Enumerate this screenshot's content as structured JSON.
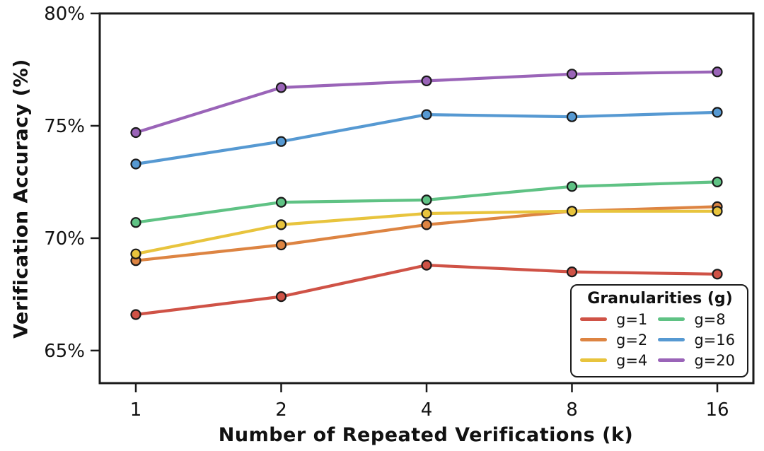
{
  "chart_data": {
    "type": "line",
    "title": "",
    "xlabel": "Number of Repeated Verifications (k)",
    "ylabel": "Verification Accuracy (%)",
    "x": [
      1,
      2,
      4,
      8,
      16
    ],
    "x_scale": "log2",
    "x_tick_labels": [
      "1",
      "2",
      "4",
      "8",
      "16"
    ],
    "y_ticks": [
      65,
      70,
      75,
      80
    ],
    "y_tick_labels": [
      "65%",
      "70%",
      "75%",
      "80%"
    ],
    "ylim": [
      63.55,
      80
    ],
    "grid": false,
    "legend_title": "Granularities (g)",
    "legend_position": "lower right",
    "axis_color": "#1a1a1a",
    "series": [
      {
        "name": "g=1",
        "color": "#cf5246",
        "values": [
          66.6,
          67.4,
          68.8,
          68.5,
          68.4
        ]
      },
      {
        "name": "g=2",
        "color": "#dd8442",
        "values": [
          69.0,
          69.7,
          70.6,
          71.2,
          71.4
        ]
      },
      {
        "name": "g=4",
        "color": "#e8c43d",
        "values": [
          69.3,
          70.6,
          71.1,
          71.2,
          71.2
        ]
      },
      {
        "name": "g=8",
        "color": "#5fc284",
        "values": [
          70.7,
          71.6,
          71.7,
          72.3,
          72.5
        ]
      },
      {
        "name": "g=16",
        "color": "#5699d2",
        "values": [
          73.3,
          74.3,
          75.5,
          75.4,
          75.6
        ]
      },
      {
        "name": "g=20",
        "color": "#9a64b8",
        "values": [
          74.7,
          76.7,
          77.0,
          77.3,
          77.4
        ]
      }
    ]
  }
}
